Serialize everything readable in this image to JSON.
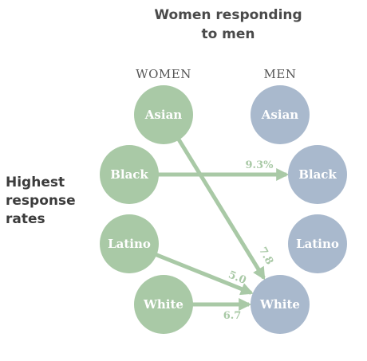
{
  "title": {
    "line1": "Women responding",
    "line2": "to men"
  },
  "side_label": {
    "line1": "Highest",
    "line2": "response",
    "line3": "rates"
  },
  "columns": {
    "left": "WOMEN",
    "right": "MEN"
  },
  "colors": {
    "women": "#a9c9a6",
    "men": "#a9b9cd",
    "arrow": "#a9c9a6",
    "text": "#ffffff"
  },
  "women_nodes": [
    "Asian",
    "Black",
    "Latino",
    "White"
  ],
  "men_nodes": [
    "Asian",
    "Black",
    "Latino",
    "White"
  ],
  "links": [
    {
      "from": "Asian",
      "to": "White",
      "label": "7.8"
    },
    {
      "from": "Black",
      "to": "Black",
      "label": "9.3%"
    },
    {
      "from": "Latino",
      "to": "White",
      "label": "5.0"
    },
    {
      "from": "White",
      "to": "White",
      "label": "6.7"
    }
  ]
}
